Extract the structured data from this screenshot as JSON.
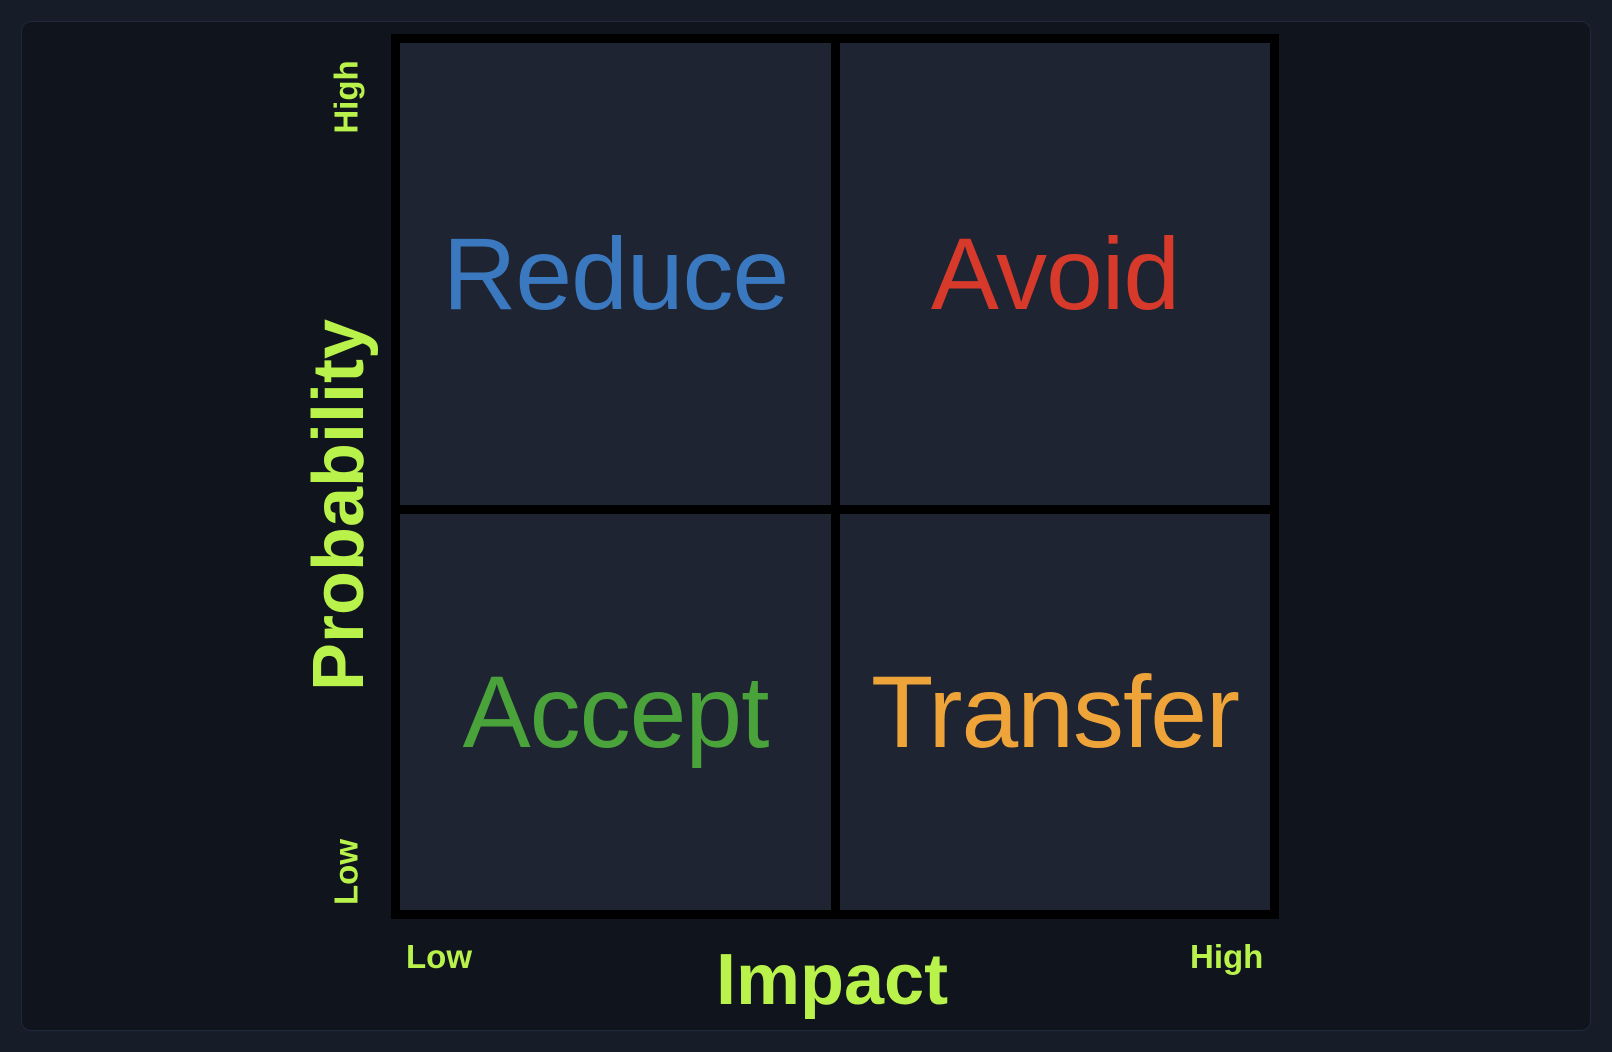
{
  "matrix": {
    "quadrants": {
      "top_left": {
        "label": "Reduce",
        "color": "#3a78c0"
      },
      "top_right": {
        "label": "Avoid",
        "color": "#d7392b"
      },
      "bottom_left": {
        "label": "Accept",
        "color": "#4aa23a"
      },
      "bottom_right": {
        "label": "Transfer",
        "color": "#efa43a"
      }
    }
  },
  "axes": {
    "y": {
      "title": "Probability",
      "low": "Low",
      "high": "High"
    },
    "x": {
      "title": "Impact",
      "low": "Low",
      "high": "High"
    },
    "accent_color": "#b9f24a"
  }
}
